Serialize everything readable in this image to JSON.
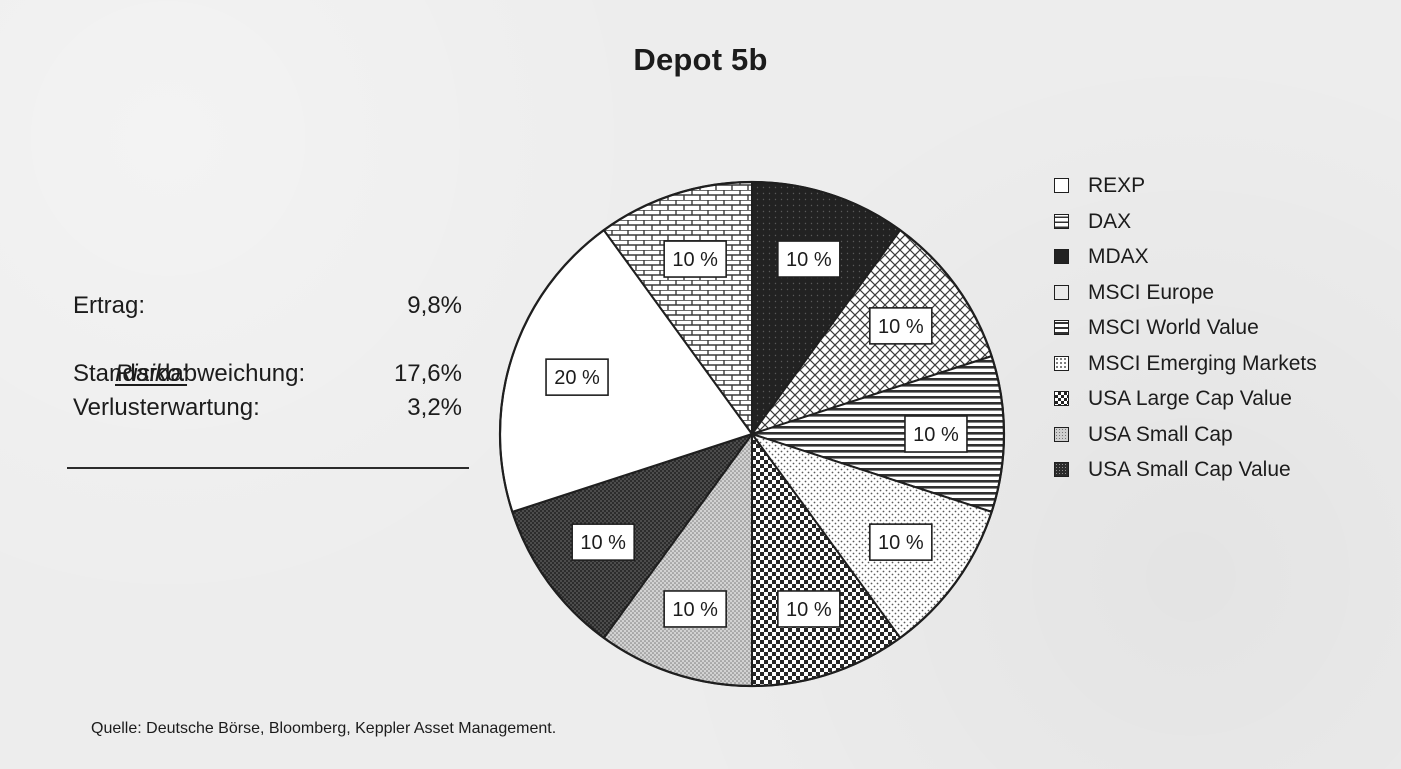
{
  "chart_data": {
    "type": "pie",
    "title": "Depot 5b",
    "unit": "%",
    "categories": [
      "REXP",
      "DAX",
      "MDAX",
      "MSCI Europe",
      "MSCI World Value",
      "MSCI Emerging Markets",
      "USA Large Cap Value",
      "USA Small Cap",
      "USA Small Cap Value"
    ],
    "values": [
      20,
      10,
      10,
      10,
      10,
      10,
      10,
      10,
      10
    ],
    "data_labels": [
      "20 %",
      "10 %",
      "10 %",
      "10 %",
      "10 %",
      "10 %",
      "10 %",
      "10 %",
      "10 %"
    ],
    "legend_position": "right",
    "slice_patterns": [
      "plain-white",
      "brick",
      "dark-solid",
      "diagonal-crosshatch",
      "horizontal-lines",
      "fine-dots",
      "checker",
      "light-grey-dots",
      "dense-dark-dots"
    ]
  },
  "stats": {
    "ertrag_label": "Ertrag:",
    "ertrag_value": "9,8%",
    "risiko_heading": "Risiko:",
    "std_label": "Standardabweichung:",
    "std_value": "17,6%",
    "verlust_label": "Verlusterwartung:",
    "verlust_value": "3,2%"
  },
  "source_note": "Quelle: Deutsche Börse, Bloomberg, Keppler Asset Management."
}
